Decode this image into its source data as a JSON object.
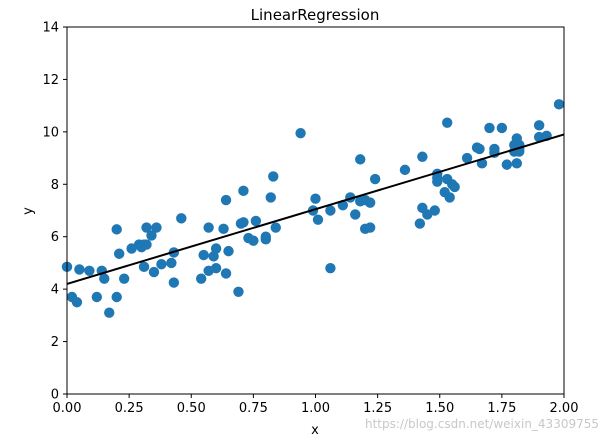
{
  "chart_data": {
    "type": "scatter",
    "title": "LinearRegression",
    "xlabel": "x",
    "ylabel": "y",
    "xlim": [
      0.0,
      2.0
    ],
    "ylim": [
      0,
      14
    ],
    "xticks": [
      "0.00",
      "0.25",
      "0.50",
      "0.75",
      "1.00",
      "1.25",
      "1.50",
      "1.75",
      "2.00"
    ],
    "yticks": [
      "0",
      "2",
      "4",
      "6",
      "8",
      "10",
      "12",
      "14"
    ],
    "grid": false,
    "legend": "none",
    "point_color": "#1f77b4",
    "line_color": "#000000",
    "series": [
      {
        "kind": "points",
        "x": [
          0.0,
          0.02,
          0.04,
          0.05,
          0.09,
          0.12,
          0.14,
          0.15,
          0.17,
          0.2,
          0.2,
          0.21,
          0.23,
          0.26,
          0.29,
          0.3,
          0.31,
          0.31,
          0.32,
          0.32,
          0.34,
          0.35,
          0.36,
          0.38,
          0.42,
          0.43,
          0.43,
          0.46,
          0.54,
          0.55,
          0.57,
          0.57,
          0.59,
          0.6,
          0.6,
          0.63,
          0.64,
          0.64,
          0.65,
          0.69,
          0.7,
          0.71,
          0.71,
          0.73,
          0.75,
          0.76,
          0.8,
          0.8,
          0.82,
          0.83,
          0.84,
          0.94,
          0.99,
          1.0,
          1.01,
          1.06,
          1.06,
          1.11,
          1.14,
          1.16,
          1.18,
          1.18,
          1.2,
          1.2,
          1.22,
          1.22,
          1.24,
          1.36,
          1.42,
          1.43,
          1.43,
          1.45,
          1.48,
          1.49,
          1.49,
          1.49,
          1.52,
          1.53,
          1.53,
          1.54,
          1.55,
          1.56,
          1.61,
          1.65,
          1.66,
          1.67,
          1.7,
          1.72,
          1.72,
          1.75,
          1.77,
          1.8,
          1.8,
          1.81,
          1.81,
          1.82,
          1.82,
          1.82,
          1.9,
          1.9,
          1.93,
          1.98
        ],
        "y": [
          4.85,
          3.7,
          3.5,
          4.75,
          4.7,
          3.7,
          4.7,
          4.4,
          3.1,
          6.28,
          3.7,
          5.35,
          4.4,
          5.55,
          5.7,
          5.6,
          5.7,
          4.85,
          6.35,
          5.7,
          6.05,
          4.65,
          6.35,
          4.95,
          5.0,
          5.4,
          4.25,
          6.7,
          4.4,
          5.3,
          6.35,
          4.7,
          5.25,
          5.55,
          4.8,
          6.3,
          4.6,
          7.4,
          5.45,
          3.9,
          6.5,
          7.75,
          6.55,
          5.95,
          5.85,
          6.6,
          5.9,
          6.0,
          7.5,
          8.3,
          6.35,
          9.95,
          7.0,
          7.45,
          6.65,
          7.0,
          4.8,
          7.2,
          7.5,
          6.85,
          8.95,
          7.35,
          6.3,
          7.4,
          7.3,
          6.35,
          8.2,
          8.55,
          6.5,
          9.05,
          7.1,
          6.85,
          7.0,
          8.4,
          8.25,
          8.1,
          7.7,
          10.35,
          8.2,
          7.5,
          8.0,
          7.9,
          9.0,
          9.4,
          9.35,
          8.8,
          10.15,
          9.2,
          9.35,
          10.15,
          8.75,
          9.25,
          9.5,
          9.75,
          8.8,
          9.35,
          9.5,
          9.25,
          10.25,
          9.8,
          9.85,
          11.05
        ]
      },
      {
        "kind": "fit-line",
        "x": [
          0.0,
          2.0
        ],
        "y": [
          4.2,
          9.9
        ]
      }
    ],
    "watermark": "https://blog.csdn.net/weixin_43309755"
  }
}
